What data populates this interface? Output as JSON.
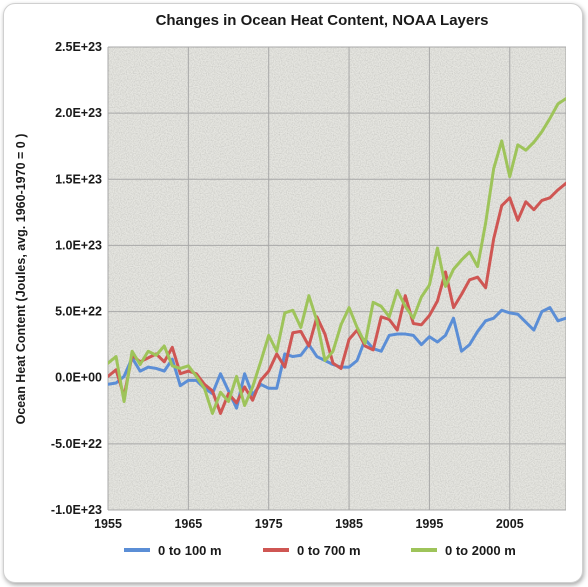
{
  "chart_data": {
    "type": "line",
    "title": "Changes in Ocean Heat Content, NOAA Layers",
    "ylabel": "Ocean Heat Content (Joules, avg. 1960-1970 = 0 )",
    "xlabel": "",
    "xlim": [
      1955,
      2012
    ],
    "ylim": [
      -1e+23,
      2.5e+23
    ],
    "x_ticks": [
      1955,
      1965,
      1975,
      1985,
      1995,
      2005
    ],
    "x_tick_labels": [
      "1955",
      "1965",
      "1975",
      "1985",
      "1995",
      "2005"
    ],
    "y_ticks": [
      2.5e+23,
      2e+23,
      1.5e+23,
      1e+23,
      5e+22,
      0,
      -5e+22,
      -1e+23
    ],
    "y_tick_labels": [
      "2.5E+23",
      "2.0E+23",
      "1.5E+23",
      "1.0E+23",
      "5.0E+22",
      "0.0E+00",
      "-5.0E+22",
      "-1.0E+23"
    ],
    "grid": true,
    "legend_position": "bottom",
    "x": [
      1955,
      1956,
      1957,
      1958,
      1959,
      1960,
      1961,
      1962,
      1963,
      1964,
      1965,
      1966,
      1967,
      1968,
      1969,
      1970,
      1971,
      1972,
      1973,
      1974,
      1975,
      1976,
      1977,
      1978,
      1979,
      1980,
      1981,
      1982,
      1983,
      1984,
      1985,
      1986,
      1987,
      1988,
      1989,
      1990,
      1991,
      1992,
      1993,
      1994,
      1995,
      1996,
      1997,
      1998,
      1999,
      2000,
      2001,
      2002,
      2003,
      2004,
      2005,
      2006,
      2007,
      2008,
      2009,
      2010,
      2011,
      2012
    ],
    "series": [
      {
        "name": "0 to 100 m",
        "color": "#5b8ed6",
        "values": [
          -5e+21,
          -4e+21,
          1e+21,
          1.5e+22,
          5e+21,
          8e+21,
          7e+21,
          5e+21,
          1.4e+22,
          -6e+21,
          -2e+21,
          -2e+21,
          -8e+21,
          -1.2e+22,
          3e+21,
          -1e+22,
          -2.3e+22,
          3e+21,
          -1.3e+22,
          -5e+21,
          -8e+21,
          -8e+21,
          1.8e+22,
          1.6e+22,
          1.7e+22,
          2.5e+22,
          1.6e+22,
          1.3e+22,
          1e+22,
          8e+21,
          8e+21,
          1.3e+22,
          2.9e+22,
          2.2e+22,
          2e+22,
          3.2e+22,
          3.3e+22,
          3.3e+22,
          3.2e+22,
          2.5e+22,
          3.1e+22,
          2.7e+22,
          3.2e+22,
          4.5e+22,
          2e+22,
          2.5e+22,
          3.5e+22,
          4.3e+22,
          4.5e+22,
          5.1e+22,
          4.9e+22,
          4.8e+22,
          4.2e+22,
          3.6e+22,
          5e+22,
          5.3e+22,
          4.3e+22,
          4.5e+22
        ]
      },
      {
        "name": "0 to 700 m",
        "color": "#cf5653",
        "values": [
          1e+21,
          6e+21,
          -1.4e+22,
          1.7e+22,
          1.2e+22,
          1.5e+22,
          1.8e+22,
          1.2e+22,
          2.3e+22,
          3e+21,
          5e+21,
          3e+21,
          -5e+21,
          -1e+22,
          -2.7e+22,
          -1.2e+22,
          -1.9e+22,
          -7e+21,
          -1.7e+22,
          -2e+21,
          5e+21,
          1.8e+22,
          8e+21,
          3.4e+22,
          3.5e+22,
          2.4e+22,
          4.6e+22,
          3.3e+22,
          1.1e+22,
          7e+21,
          2.9e+22,
          3.6e+22,
          2.4e+22,
          2.1e+22,
          4.6e+22,
          4.4e+22,
          3.6e+22,
          6.2e+22,
          4.1e+22,
          4e+22,
          4.7e+22,
          5.8e+22,
          8e+22,
          5.3e+22,
          6.3e+22,
          7.4e+22,
          7.6e+22,
          6.8e+22,
          1.05e+23,
          1.3e+23,
          1.36e+23,
          1.19e+23,
          1.33e+23,
          1.27e+23,
          1.34e+23,
          1.36e+23,
          1.42e+23,
          1.47e+23
        ]
      },
      {
        "name": "0 to 2000 m",
        "color": "#9ec45a",
        "values": [
          1.1e+22,
          1.6e+22,
          -1.8e+22,
          2e+22,
          1e+22,
          2e+22,
          1.7e+22,
          2.4e+22,
          9e+21,
          7e+21,
          9e+21,
          1e+21,
          -8e+21,
          -2.7e+22,
          -1.1e+22,
          -1.8e+22,
          1e+21,
          -2.1e+22,
          -7e+21,
          1.2e+22,
          3.2e+22,
          2e+22,
          4.9e+22,
          5.1e+22,
          3.8e+22,
          6.2e+22,
          4.3e+22,
          1.3e+22,
          2e+22,
          4e+22,
          5.3e+22,
          3.8e+22,
          2.6e+22,
          5.7e+22,
          5.4e+22,
          4.6e+22,
          6.6e+22,
          5.4e+22,
          4.5e+22,
          6.1e+22,
          7e+22,
          9.8e+22,
          6.9e+22,
          8.2e+22,
          8.9e+22,
          9.5e+22,
          8.4e+22,
          1.17e+23,
          1.58e+23,
          1.79e+23,
          1.52e+23,
          1.76e+23,
          1.72e+23,
          1.78e+23,
          1.86e+23,
          1.96e+23,
          2.07e+23,
          2.11e+23
        ]
      }
    ]
  }
}
